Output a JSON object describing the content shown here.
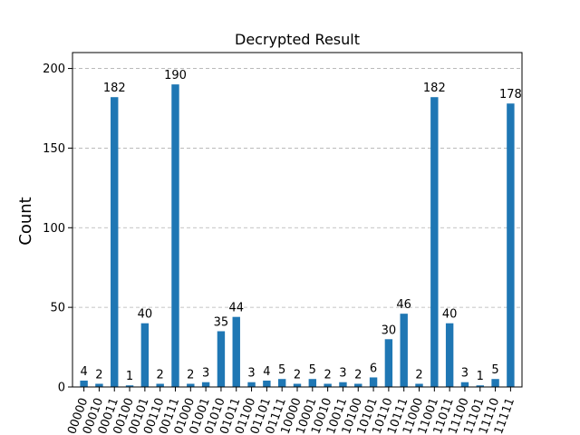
{
  "chart_data": {
    "type": "bar",
    "title": "Decrypted Result",
    "xlabel": "",
    "ylabel": "Count",
    "ylim": [
      0,
      210
    ],
    "yticks": [
      0,
      50,
      100,
      150,
      200
    ],
    "grid": true,
    "bar_color": "#1f77b4",
    "categories": [
      "00000",
      "00010",
      "00011",
      "00100",
      "00101",
      "00110",
      "00111",
      "01000",
      "01001",
      "01010",
      "01011",
      "01100",
      "01101",
      "01111",
      "10000",
      "10001",
      "10010",
      "10011",
      "10100",
      "10101",
      "10110",
      "10111",
      "11000",
      "11001",
      "11011",
      "11100",
      "11101",
      "11110",
      "11111"
    ],
    "values": [
      4,
      2,
      182,
      1,
      40,
      2,
      190,
      2,
      3,
      35,
      44,
      3,
      4,
      5,
      2,
      5,
      2,
      3,
      2,
      6,
      30,
      46,
      2,
      182,
      40,
      3,
      1,
      5,
      178
    ]
  }
}
